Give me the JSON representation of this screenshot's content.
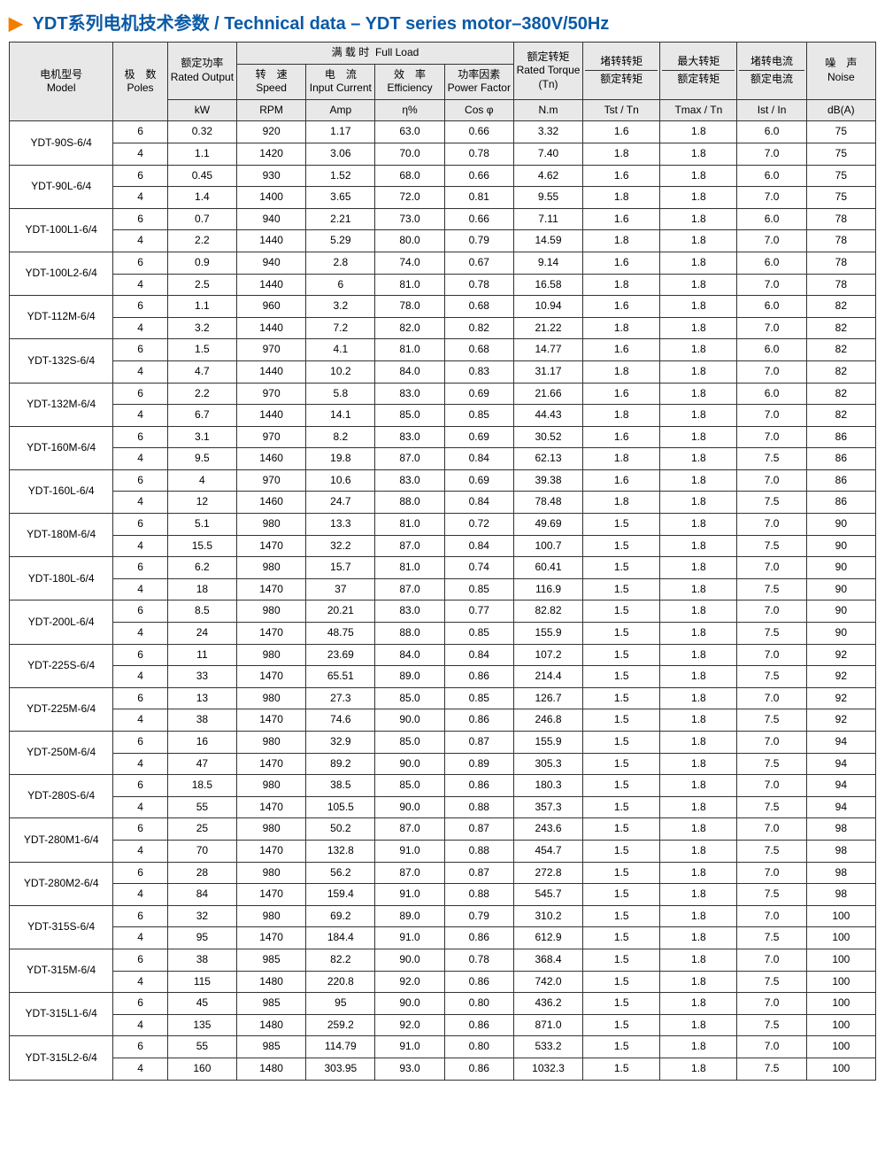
{
  "title_arrow": "▶",
  "title_cn": "YDT系列电机技术参数 / ",
  "title_en": "Technical data – YDT series motor–380V/50Hz",
  "header": {
    "model_cn": "电机型号",
    "model_en": "Model",
    "poles_cn": "极　数",
    "poles_en": "Poles",
    "rated_output_cn": "额定功率",
    "rated_output_en": "Rated Output",
    "rated_output_unit": "kW",
    "full_load_cn": "满 载 时",
    "full_load_en": "Full Load",
    "speed_cn": "转　速",
    "speed_en": "Speed",
    "speed_unit": "RPM",
    "current_cn": "电　流",
    "current_en": "Input Current",
    "current_unit": "Amp",
    "eff_cn": "效　率",
    "eff_en": "Efficiency",
    "eff_unit": "η%",
    "pf_cn": "功率因素",
    "pf_en": "Power Factor",
    "pf_unit": "Cos φ",
    "torque_cn": "额定转矩",
    "torque_en": "Rated Torque (Tn)",
    "torque_unit": "N.m",
    "tst_top": "堵转转矩",
    "tst_bot": "额定转矩",
    "tst_unit": "Tst / Tn",
    "tmax_top": "最大转矩",
    "tmax_bot": "额定转矩",
    "tmax_unit": "Tmax / Tn",
    "ist_top": "堵转电流",
    "ist_bot": "额定电流",
    "ist_unit": "Ist / In",
    "noise_cn": "噪　声",
    "noise_en": "Noise",
    "noise_unit": "dB(A)"
  },
  "models": [
    {
      "name": "YDT-90S-6/4",
      "rows": [
        {
          "poles": "6",
          "kw": "0.32",
          "rpm": "920",
          "amp": "1.17",
          "eff": "63.0",
          "pf": "0.66",
          "tn": "3.32",
          "tst": "1.6",
          "tmax": "1.8",
          "ist": "6.0",
          "db": "75"
        },
        {
          "poles": "4",
          "kw": "1.1",
          "rpm": "1420",
          "amp": "3.06",
          "eff": "70.0",
          "pf": "0.78",
          "tn": "7.40",
          "tst": "1.8",
          "tmax": "1.8",
          "ist": "7.0",
          "db": "75"
        }
      ]
    },
    {
      "name": "YDT-90L-6/4",
      "rows": [
        {
          "poles": "6",
          "kw": "0.45",
          "rpm": "930",
          "amp": "1.52",
          "eff": "68.0",
          "pf": "0.66",
          "tn": "4.62",
          "tst": "1.6",
          "tmax": "1.8",
          "ist": "6.0",
          "db": "75"
        },
        {
          "poles": "4",
          "kw": "1.4",
          "rpm": "1400",
          "amp": "3.65",
          "eff": "72.0",
          "pf": "0.81",
          "tn": "9.55",
          "tst": "1.8",
          "tmax": "1.8",
          "ist": "7.0",
          "db": "75"
        }
      ]
    },
    {
      "name": "YDT-100L1-6/4",
      "rows": [
        {
          "poles": "6",
          "kw": "0.7",
          "rpm": "940",
          "amp": "2.21",
          "eff": "73.0",
          "pf": "0.66",
          "tn": "7.11",
          "tst": "1.6",
          "tmax": "1.8",
          "ist": "6.0",
          "db": "78"
        },
        {
          "poles": "4",
          "kw": "2.2",
          "rpm": "1440",
          "amp": "5.29",
          "eff": "80.0",
          "pf": "0.79",
          "tn": "14.59",
          "tst": "1.8",
          "tmax": "1.8",
          "ist": "7.0",
          "db": "78"
        }
      ]
    },
    {
      "name": "YDT-100L2-6/4",
      "rows": [
        {
          "poles": "6",
          "kw": "0.9",
          "rpm": "940",
          "amp": "2.8",
          "eff": "74.0",
          "pf": "0.67",
          "tn": "9.14",
          "tst": "1.6",
          "tmax": "1.8",
          "ist": "6.0",
          "db": "78"
        },
        {
          "poles": "4",
          "kw": "2.5",
          "rpm": "1440",
          "amp": "6",
          "eff": "81.0",
          "pf": "0.78",
          "tn": "16.58",
          "tst": "1.8",
          "tmax": "1.8",
          "ist": "7.0",
          "db": "78"
        }
      ]
    },
    {
      "name": "YDT-112M-6/4",
      "rows": [
        {
          "poles": "6",
          "kw": "1.1",
          "rpm": "960",
          "amp": "3.2",
          "eff": "78.0",
          "pf": "0.68",
          "tn": "10.94",
          "tst": "1.6",
          "tmax": "1.8",
          "ist": "6.0",
          "db": "82"
        },
        {
          "poles": "4",
          "kw": "3.2",
          "rpm": "1440",
          "amp": "7.2",
          "eff": "82.0",
          "pf": "0.82",
          "tn": "21.22",
          "tst": "1.8",
          "tmax": "1.8",
          "ist": "7.0",
          "db": "82"
        }
      ]
    },
    {
      "name": "YDT-132S-6/4",
      "rows": [
        {
          "poles": "6",
          "kw": "1.5",
          "rpm": "970",
          "amp": "4.1",
          "eff": "81.0",
          "pf": "0.68",
          "tn": "14.77",
          "tst": "1.6",
          "tmax": "1.8",
          "ist": "6.0",
          "db": "82"
        },
        {
          "poles": "4",
          "kw": "4.7",
          "rpm": "1440",
          "amp": "10.2",
          "eff": "84.0",
          "pf": "0.83",
          "tn": "31.17",
          "tst": "1.8",
          "tmax": "1.8",
          "ist": "7.0",
          "db": "82"
        }
      ]
    },
    {
      "name": "YDT-132M-6/4",
      "rows": [
        {
          "poles": "6",
          "kw": "2.2",
          "rpm": "970",
          "amp": "5.8",
          "eff": "83.0",
          "pf": "0.69",
          "tn": "21.66",
          "tst": "1.6",
          "tmax": "1.8",
          "ist": "6.0",
          "db": "82"
        },
        {
          "poles": "4",
          "kw": "6.7",
          "rpm": "1440",
          "amp": "14.1",
          "eff": "85.0",
          "pf": "0.85",
          "tn": "44.43",
          "tst": "1.8",
          "tmax": "1.8",
          "ist": "7.0",
          "db": "82"
        }
      ]
    },
    {
      "name": "YDT-160M-6/4",
      "rows": [
        {
          "poles": "6",
          "kw": "3.1",
          "rpm": "970",
          "amp": "8.2",
          "eff": "83.0",
          "pf": "0.69",
          "tn": "30.52",
          "tst": "1.6",
          "tmax": "1.8",
          "ist": "7.0",
          "db": "86"
        },
        {
          "poles": "4",
          "kw": "9.5",
          "rpm": "1460",
          "amp": "19.8",
          "eff": "87.0",
          "pf": "0.84",
          "tn": "62.13",
          "tst": "1.8",
          "tmax": "1.8",
          "ist": "7.5",
          "db": "86"
        }
      ]
    },
    {
      "name": "YDT-160L-6/4",
      "rows": [
        {
          "poles": "6",
          "kw": "4",
          "rpm": "970",
          "amp": "10.6",
          "eff": "83.0",
          "pf": "0.69",
          "tn": "39.38",
          "tst": "1.6",
          "tmax": "1.8",
          "ist": "7.0",
          "db": "86"
        },
        {
          "poles": "4",
          "kw": "12",
          "rpm": "1460",
          "amp": "24.7",
          "eff": "88.0",
          "pf": "0.84",
          "tn": "78.48",
          "tst": "1.8",
          "tmax": "1.8",
          "ist": "7.5",
          "db": "86"
        }
      ]
    },
    {
      "name": "YDT-180M-6/4",
      "rows": [
        {
          "poles": "6",
          "kw": "5.1",
          "rpm": "980",
          "amp": "13.3",
          "eff": "81.0",
          "pf": "0.72",
          "tn": "49.69",
          "tst": "1.5",
          "tmax": "1.8",
          "ist": "7.0",
          "db": "90"
        },
        {
          "poles": "4",
          "kw": "15.5",
          "rpm": "1470",
          "amp": "32.2",
          "eff": "87.0",
          "pf": "0.84",
          "tn": "100.7",
          "tst": "1.5",
          "tmax": "1.8",
          "ist": "7.5",
          "db": "90"
        }
      ]
    },
    {
      "name": "YDT-180L-6/4",
      "rows": [
        {
          "poles": "6",
          "kw": "6.2",
          "rpm": "980",
          "amp": "15.7",
          "eff": "81.0",
          "pf": "0.74",
          "tn": "60.41",
          "tst": "1.5",
          "tmax": "1.8",
          "ist": "7.0",
          "db": "90"
        },
        {
          "poles": "4",
          "kw": "18",
          "rpm": "1470",
          "amp": "37",
          "eff": "87.0",
          "pf": "0.85",
          "tn": "116.9",
          "tst": "1.5",
          "tmax": "1.8",
          "ist": "7.5",
          "db": "90"
        }
      ]
    },
    {
      "name": "YDT-200L-6/4",
      "rows": [
        {
          "poles": "6",
          "kw": "8.5",
          "rpm": "980",
          "amp": "20.21",
          "eff": "83.0",
          "pf": "0.77",
          "tn": "82.82",
          "tst": "1.5",
          "tmax": "1.8",
          "ist": "7.0",
          "db": "90"
        },
        {
          "poles": "4",
          "kw": "24",
          "rpm": "1470",
          "amp": "48.75",
          "eff": "88.0",
          "pf": "0.85",
          "tn": "155.9",
          "tst": "1.5",
          "tmax": "1.8",
          "ist": "7.5",
          "db": "90"
        }
      ]
    },
    {
      "name": "YDT-225S-6/4",
      "rows": [
        {
          "poles": "6",
          "kw": "11",
          "rpm": "980",
          "amp": "23.69",
          "eff": "84.0",
          "pf": "0.84",
          "tn": "107.2",
          "tst": "1.5",
          "tmax": "1.8",
          "ist": "7.0",
          "db": "92"
        },
        {
          "poles": "4",
          "kw": "33",
          "rpm": "1470",
          "amp": "65.51",
          "eff": "89.0",
          "pf": "0.86",
          "tn": "214.4",
          "tst": "1.5",
          "tmax": "1.8",
          "ist": "7.5",
          "db": "92"
        }
      ]
    },
    {
      "name": "YDT-225M-6/4",
      "rows": [
        {
          "poles": "6",
          "kw": "13",
          "rpm": "980",
          "amp": "27.3",
          "eff": "85.0",
          "pf": "0.85",
          "tn": "126.7",
          "tst": "1.5",
          "tmax": "1.8",
          "ist": "7.0",
          "db": "92"
        },
        {
          "poles": "4",
          "kw": "38",
          "rpm": "1470",
          "amp": "74.6",
          "eff": "90.0",
          "pf": "0.86",
          "tn": "246.8",
          "tst": "1.5",
          "tmax": "1.8",
          "ist": "7.5",
          "db": "92"
        }
      ]
    },
    {
      "name": "YDT-250M-6/4",
      "rows": [
        {
          "poles": "6",
          "kw": "16",
          "rpm": "980",
          "amp": "32.9",
          "eff": "85.0",
          "pf": "0.87",
          "tn": "155.9",
          "tst": "1.5",
          "tmax": "1.8",
          "ist": "7.0",
          "db": "94"
        },
        {
          "poles": "4",
          "kw": "47",
          "rpm": "1470",
          "amp": "89.2",
          "eff": "90.0",
          "pf": "0.89",
          "tn": "305.3",
          "tst": "1.5",
          "tmax": "1.8",
          "ist": "7.5",
          "db": "94"
        }
      ]
    },
    {
      "name": "YDT-280S-6/4",
      "rows": [
        {
          "poles": "6",
          "kw": "18.5",
          "rpm": "980",
          "amp": "38.5",
          "eff": "85.0",
          "pf": "0.86",
          "tn": "180.3",
          "tst": "1.5",
          "tmax": "1.8",
          "ist": "7.0",
          "db": "94"
        },
        {
          "poles": "4",
          "kw": "55",
          "rpm": "1470",
          "amp": "105.5",
          "eff": "90.0",
          "pf": "0.88",
          "tn": "357.3",
          "tst": "1.5",
          "tmax": "1.8",
          "ist": "7.5",
          "db": "94"
        }
      ]
    },
    {
      "name": "YDT-280M1-6/4",
      "rows": [
        {
          "poles": "6",
          "kw": "25",
          "rpm": "980",
          "amp": "50.2",
          "eff": "87.0",
          "pf": "0.87",
          "tn": "243.6",
          "tst": "1.5",
          "tmax": "1.8",
          "ist": "7.0",
          "db": "98"
        },
        {
          "poles": "4",
          "kw": "70",
          "rpm": "1470",
          "amp": "132.8",
          "eff": "91.0",
          "pf": "0.88",
          "tn": "454.7",
          "tst": "1.5",
          "tmax": "1.8",
          "ist": "7.5",
          "db": "98"
        }
      ]
    },
    {
      "name": "YDT-280M2-6/4",
      "rows": [
        {
          "poles": "6",
          "kw": "28",
          "rpm": "980",
          "amp": "56.2",
          "eff": "87.0",
          "pf": "0.87",
          "tn": "272.8",
          "tst": "1.5",
          "tmax": "1.8",
          "ist": "7.0",
          "db": "98"
        },
        {
          "poles": "4",
          "kw": "84",
          "rpm": "1470",
          "amp": "159.4",
          "eff": "91.0",
          "pf": "0.88",
          "tn": "545.7",
          "tst": "1.5",
          "tmax": "1.8",
          "ist": "7.5",
          "db": "98"
        }
      ]
    },
    {
      "name": "YDT-315S-6/4",
      "rows": [
        {
          "poles": "6",
          "kw": "32",
          "rpm": "980",
          "amp": "69.2",
          "eff": "89.0",
          "pf": "0.79",
          "tn": "310.2",
          "tst": "1.5",
          "tmax": "1.8",
          "ist": "7.0",
          "db": "100"
        },
        {
          "poles": "4",
          "kw": "95",
          "rpm": "1470",
          "amp": "184.4",
          "eff": "91.0",
          "pf": "0.86",
          "tn": "612.9",
          "tst": "1.5",
          "tmax": "1.8",
          "ist": "7.5",
          "db": "100"
        }
      ]
    },
    {
      "name": "YDT-315M-6/4",
      "rows": [
        {
          "poles": "6",
          "kw": "38",
          "rpm": "985",
          "amp": "82.2",
          "eff": "90.0",
          "pf": "0.78",
          "tn": "368.4",
          "tst": "1.5",
          "tmax": "1.8",
          "ist": "7.0",
          "db": "100"
        },
        {
          "poles": "4",
          "kw": "115",
          "rpm": "1480",
          "amp": "220.8",
          "eff": "92.0",
          "pf": "0.86",
          "tn": "742.0",
          "tst": "1.5",
          "tmax": "1.8",
          "ist": "7.5",
          "db": "100"
        }
      ]
    },
    {
      "name": "YDT-315L1-6/4",
      "rows": [
        {
          "poles": "6",
          "kw": "45",
          "rpm": "985",
          "amp": "95",
          "eff": "90.0",
          "pf": "0.80",
          "tn": "436.2",
          "tst": "1.5",
          "tmax": "1.8",
          "ist": "7.0",
          "db": "100"
        },
        {
          "poles": "4",
          "kw": "135",
          "rpm": "1480",
          "amp": "259.2",
          "eff": "92.0",
          "pf": "0.86",
          "tn": "871.0",
          "tst": "1.5",
          "tmax": "1.8",
          "ist": "7.5",
          "db": "100"
        }
      ]
    },
    {
      "name": "YDT-315L2-6/4",
      "rows": [
        {
          "poles": "6",
          "kw": "55",
          "rpm": "985",
          "amp": "114.79",
          "eff": "91.0",
          "pf": "0.80",
          "tn": "533.2",
          "tst": "1.5",
          "tmax": "1.8",
          "ist": "7.0",
          "db": "100"
        },
        {
          "poles": "4",
          "kw": "160",
          "rpm": "1480",
          "amp": "303.95",
          "eff": "93.0",
          "pf": "0.86",
          "tn": "1032.3",
          "tst": "1.5",
          "tmax": "1.8",
          "ist": "7.5",
          "db": "100"
        }
      ]
    }
  ]
}
